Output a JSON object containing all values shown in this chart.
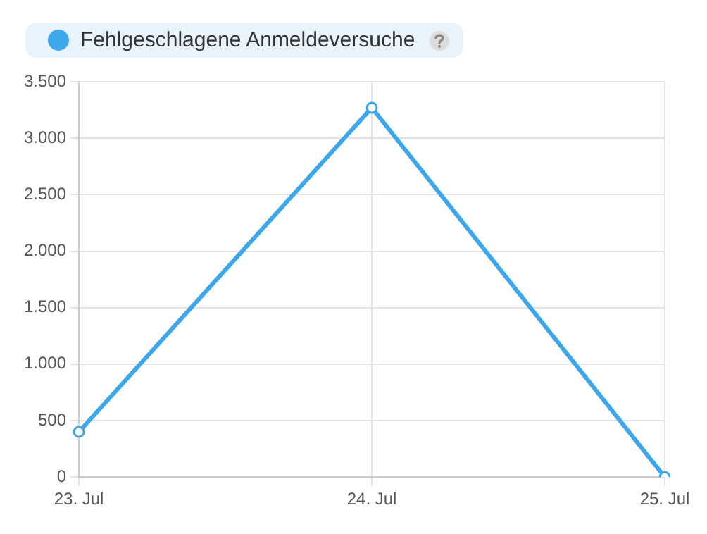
{
  "chart_data": {
    "type": "line",
    "categories": [
      "23. Jul",
      "24. Jul",
      "25. Jul"
    ],
    "series": [
      {
        "name": "Fehlgeschlagene Anmeldeversuche",
        "color": "#3ca7ea",
        "values": [
          400,
          3270,
          0
        ]
      }
    ],
    "ylim": [
      0,
      3500
    ],
    "yticks": [
      0,
      {
        "value": 500,
        "label": "500"
      },
      {
        "value": 1000,
        "label": "1.000"
      },
      {
        "value": 1500,
        "label": "1.500"
      },
      {
        "value": 2000,
        "label": "2.000"
      },
      {
        "value": 2500,
        "label": "2.500"
      },
      {
        "value": 3000,
        "label": "3.000"
      },
      {
        "value": 3500,
        "label": "3.500"
      }
    ],
    "grid": true,
    "legend": "top left",
    "marker": "circle",
    "line_style": "solid"
  }
}
